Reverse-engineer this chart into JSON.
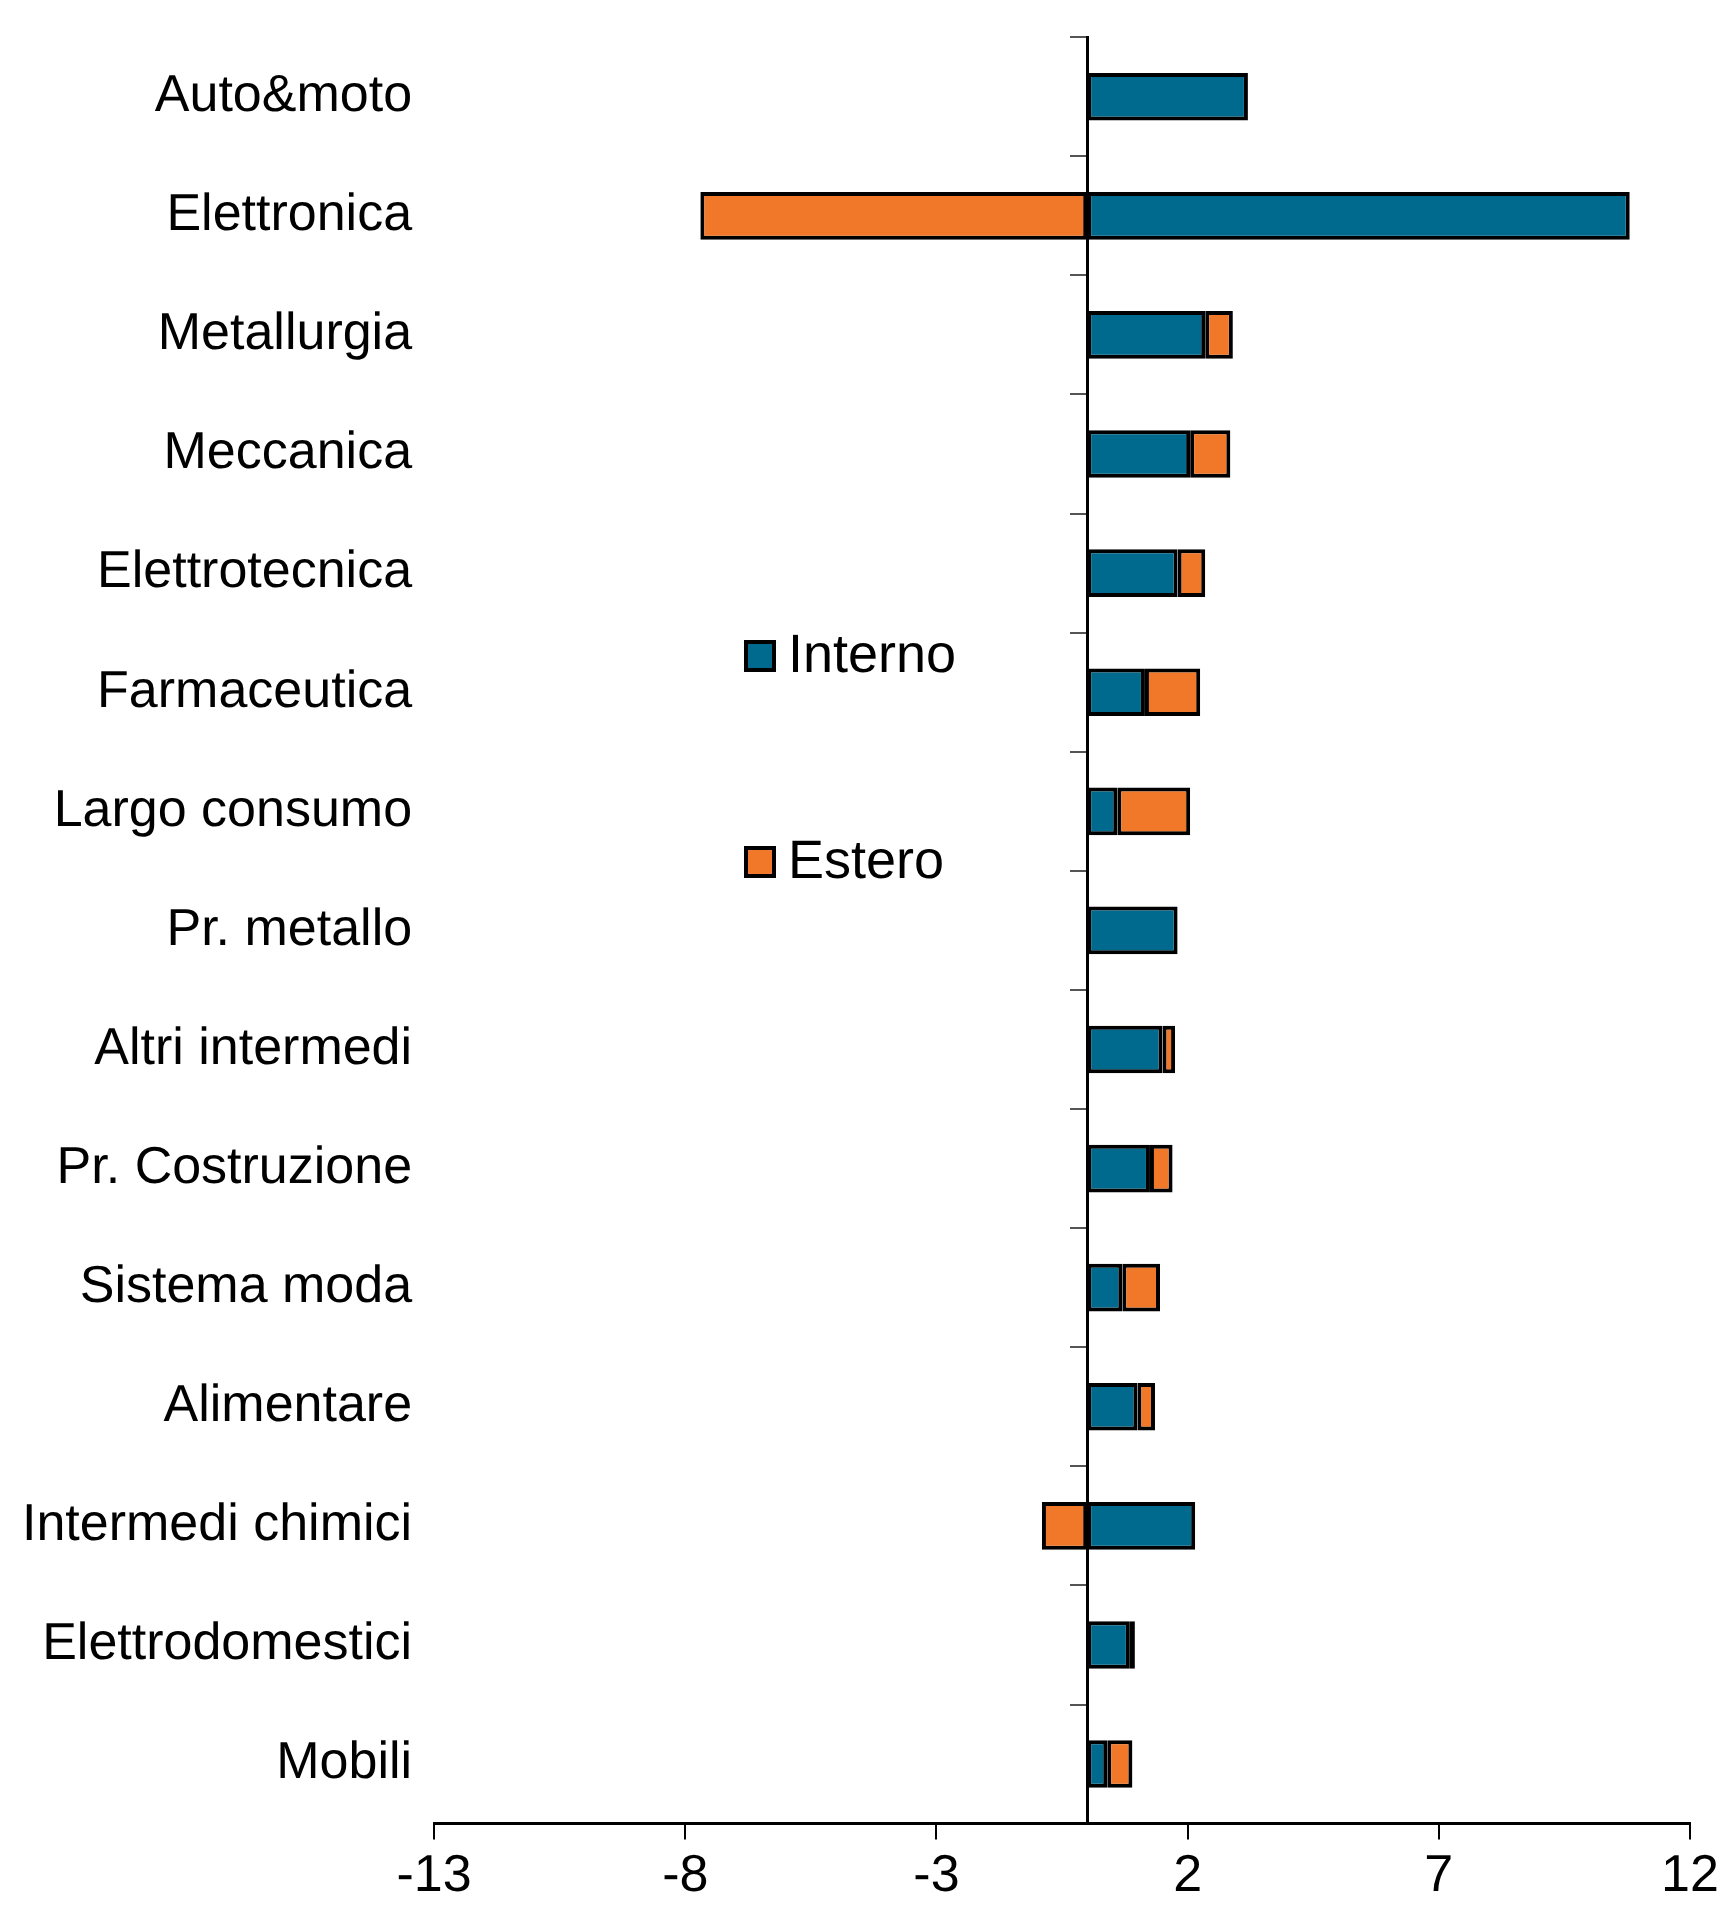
{
  "chart_data": {
    "type": "bar",
    "orientation": "horizontal",
    "stacked": true,
    "categories": [
      "Auto&moto",
      "Elettronica",
      "Metallurgia",
      "Meccanica",
      "Elettrotecnica",
      "Farmaceutica",
      "Largo consumo",
      "Pr. metallo",
      "Altri intermedi",
      "Pr. Costruzione",
      "Sistema moda",
      "Alimentare",
      "Intermedi chimici",
      "Elettrodomestici",
      "Mobili"
    ],
    "series": [
      {
        "name": "Interno",
        "color": "#006a8e",
        "values": [
          3.2,
          10.8,
          2.35,
          2.05,
          1.8,
          1.15,
          0.6,
          1.8,
          1.5,
          1.25,
          0.7,
          1.0,
          2.15,
          0.85,
          0.4
        ]
      },
      {
        "name": "Estero",
        "color": "#f07828",
        "colors": [
          "#f07828",
          "#f07828",
          "#f07828",
          "#f07828",
          "#f07828",
          "#f07828",
          "#f07828",
          "#f07828",
          "#f07828",
          "#f07828",
          "#f07828",
          "#f07828",
          "#f07828",
          "#000000",
          "#f07828"
        ],
        "values": [
          0,
          -7.7,
          0.55,
          0.8,
          0.55,
          1.1,
          1.45,
          0,
          0.25,
          0.45,
          0.75,
          0.35,
          -0.9,
          0.1,
          0.5
        ]
      }
    ],
    "xlim": [
      -13,
      12
    ],
    "xticks": [
      -13,
      -8,
      -3,
      2,
      7,
      12
    ],
    "grid": false,
    "legend": "left"
  }
}
